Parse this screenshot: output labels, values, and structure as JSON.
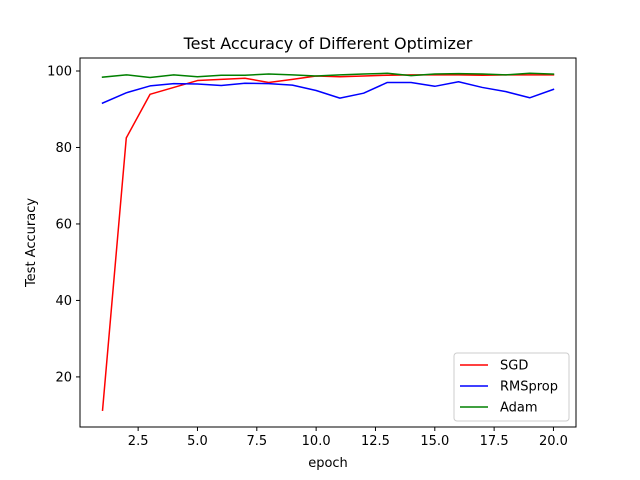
{
  "chart_data": {
    "type": "line",
    "title": "Test Accuracy of Different Optimizer",
    "xlabel": "epoch",
    "ylabel": "Test Accuracy",
    "xlim": [
      0.05,
      20.95
    ],
    "ylim": [
      6.9,
      103.4
    ],
    "xticks": [
      2.5,
      5.0,
      7.5,
      10.0,
      12.5,
      15.0,
      17.5,
      20.0
    ],
    "xtick_labels": [
      "2.5",
      "5.0",
      "7.5",
      "10.0",
      "12.5",
      "15.0",
      "17.5",
      "20.0"
    ],
    "yticks": [
      20,
      40,
      60,
      80,
      100
    ],
    "ytick_labels": [
      "20",
      "40",
      "60",
      "80",
      "100"
    ],
    "grid": false,
    "legend_position": "lower-right",
    "x": [
      1,
      2,
      3,
      4,
      5,
      6,
      7,
      8,
      9,
      10,
      11,
      12,
      13,
      14,
      15,
      16,
      17,
      18,
      19,
      20
    ],
    "series": [
      {
        "name": "SGD",
        "color": "#ff0000",
        "values": [
          11.3,
          82.5,
          93.9,
          95.7,
          97.5,
          97.8,
          98.1,
          97.0,
          97.8,
          98.7,
          98.5,
          98.7,
          98.9,
          99.0,
          99.0,
          99.0,
          98.9,
          99.0,
          99.0,
          99.0
        ]
      },
      {
        "name": "RMSprop",
        "color": "#0000ff",
        "values": [
          91.6,
          94.3,
          96.1,
          96.7,
          96.6,
          96.2,
          96.8,
          96.7,
          96.3,
          94.9,
          92.9,
          94.2,
          97.0,
          97.0,
          96.0,
          97.2,
          95.7,
          94.6,
          93.0,
          95.2
        ]
      },
      {
        "name": "Adam",
        "color": "#008000",
        "values": [
          98.4,
          99.0,
          98.3,
          99.0,
          98.5,
          98.9,
          98.9,
          99.2,
          99.0,
          98.7,
          99.0,
          99.2,
          99.4,
          98.8,
          99.2,
          99.3,
          99.2,
          99.0,
          99.4,
          99.2
        ]
      }
    ]
  }
}
